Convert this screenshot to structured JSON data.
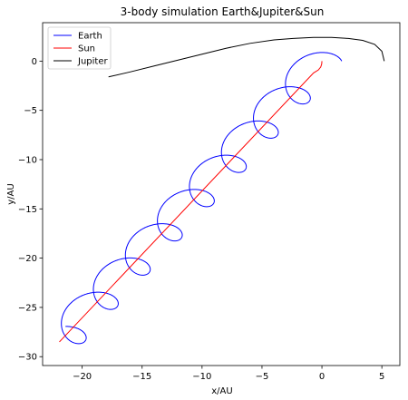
{
  "chart_data": {
    "type": "line",
    "title": "3-body simulation Earth&Jupiter&Sun",
    "xlabel": "x/AU",
    "ylabel": "y/AU",
    "xlim": [
      -23.3,
      6.5
    ],
    "ylim": [
      -30.9,
      3.9
    ],
    "xticks": [
      -20,
      -15,
      -10,
      -5,
      0,
      5
    ],
    "yticks": [
      0,
      -5,
      -10,
      -15,
      -20,
      -25,
      -30
    ],
    "grid": false,
    "legend": {
      "placement": "top-left",
      "entries": [
        "Earth",
        "Sun",
        "Jupiter"
      ]
    },
    "series": [
      {
        "name": "Earth",
        "color": "#0000ff",
        "sun_start": [
          0.0,
          0.0
        ],
        "sun_end": [
          -21.9,
          -28.5
        ],
        "loops": 8.2,
        "loop_radius": 1.65
      },
      {
        "name": "Sun",
        "color": "#ff0000",
        "x": [
          0.0,
          -0.02,
          -0.1,
          -0.3,
          -0.7,
          -21.9
        ],
        "y": [
          0.0,
          -0.3,
          -0.6,
          -0.9,
          -1.2,
          -28.5
        ]
      },
      {
        "name": "Jupiter",
        "color": "#000000",
        "x": [
          5.2,
          5.0,
          4.4,
          3.4,
          2.2,
          0.8,
          -0.7,
          -2.4,
          -4.0,
          -6.0,
          -8.0,
          -10.0,
          -12.0,
          -14.0,
          -16.0,
          -17.8
        ],
        "y": [
          0.0,
          1.0,
          1.7,
          2.1,
          2.3,
          2.4,
          2.4,
          2.3,
          2.15,
          1.8,
          1.3,
          0.7,
          0.1,
          -0.5,
          -1.1,
          -1.6
        ]
      }
    ]
  }
}
